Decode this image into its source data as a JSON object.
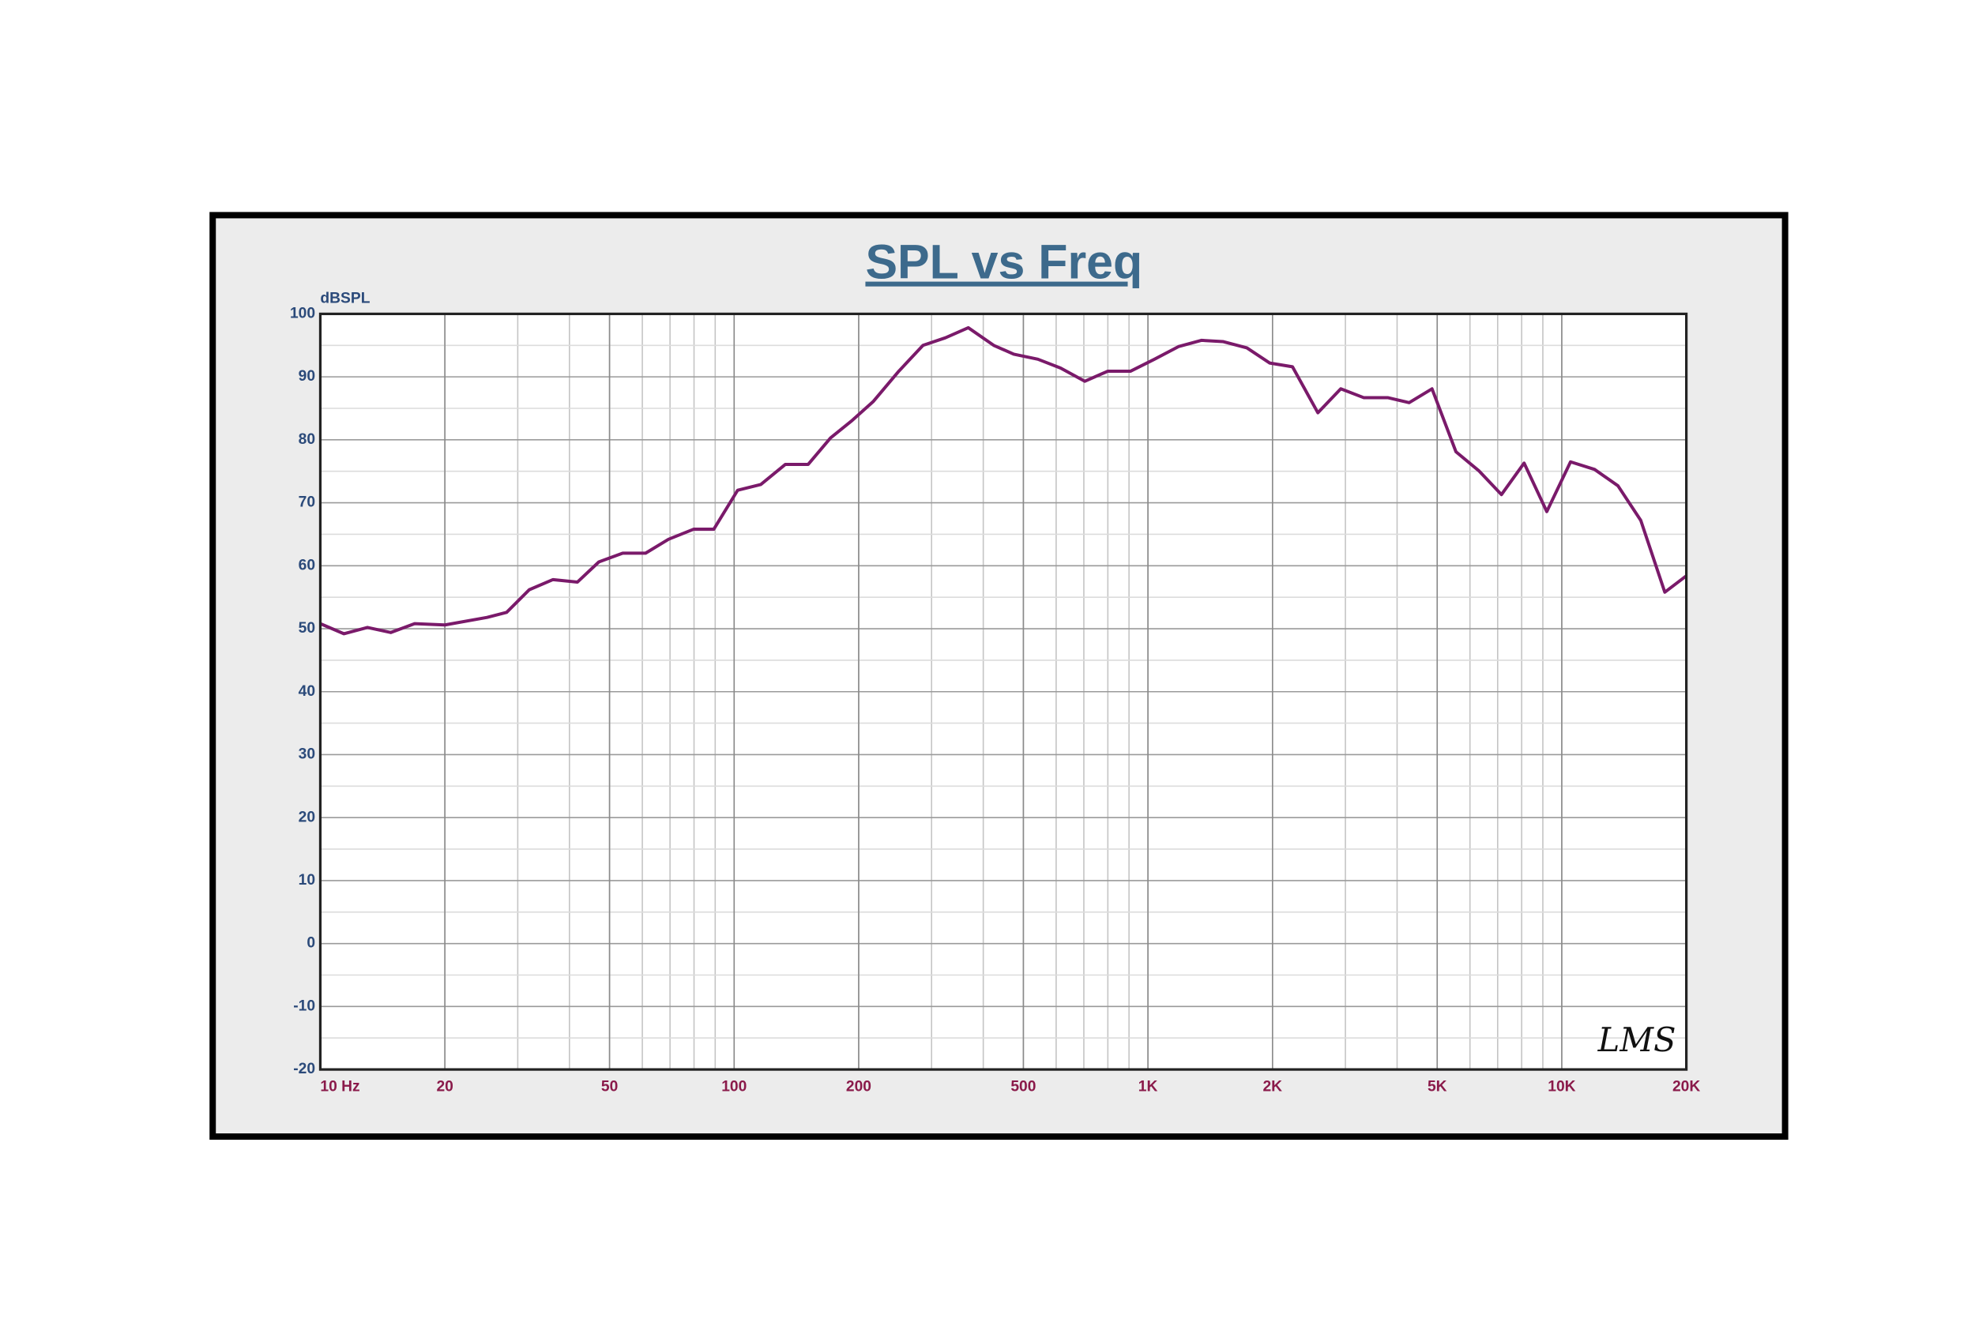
{
  "chart_data": {
    "type": "line",
    "title": "SPL vs Freq",
    "ylabel": "dBSPL",
    "annotation": "LMS",
    "xscale": "log",
    "grid": true,
    "minor_grid": true,
    "xlim": [
      10,
      20000
    ],
    "ylim": [
      -20,
      100
    ],
    "xticks": [
      {
        "value": 10,
        "label": "10 Hz"
      },
      20,
      50,
      100,
      200,
      500,
      {
        "value": 1000,
        "label": "1K"
      },
      {
        "value": 2000,
        "label": "2K"
      },
      {
        "value": 5000,
        "label": "5K"
      },
      {
        "value": 10000,
        "label": "10K"
      },
      {
        "value": 20000,
        "label": "20K"
      }
    ],
    "yticks": [
      -20,
      -10,
      0,
      10,
      20,
      30,
      40,
      50,
      60,
      70,
      80,
      90,
      100
    ],
    "series": [
      {
        "color": "#7a1a6a",
        "x": [
          10,
          11.4,
          13,
          14.8,
          16.9,
          20,
          25.3,
          28.2,
          32,
          36.5,
          41.8,
          47.1,
          53.8,
          61.1,
          69.4,
          79.8,
          89.3,
          102,
          116,
          133,
          151,
          171,
          193,
          217,
          250,
          286,
          324,
          368,
          424,
          474,
          542,
          615,
          704,
          800,
          908,
          1037,
          1185,
          1346,
          1517,
          1734,
          1968,
          2235,
          2574,
          2924,
          3321,
          3796,
          4277,
          4858,
          5550,
          6300,
          7150,
          8110,
          9200,
          10500,
          12000,
          13670,
          15520,
          17740,
          20000
        ],
        "values": [
          50.8,
          49.2,
          50.2,
          49.4,
          50.8,
          50.6,
          51.8,
          52.6,
          56.2,
          57.8,
          57.4,
          60.6,
          62,
          62,
          64.2,
          65.8,
          65.8,
          72,
          72.9,
          76.1,
          76.1,
          80.3,
          83.1,
          86.1,
          90.9,
          95,
          96.2,
          97.8,
          95,
          93.6,
          92.8,
          91.4,
          89.3,
          90.9,
          90.9,
          92.8,
          94.8,
          95.8,
          95.6,
          94.6,
          92.2,
          91.6,
          84.3,
          88.1,
          86.7,
          86.7,
          85.9,
          88.1,
          78.1,
          75.1,
          71.3,
          76.3,
          68.6,
          76.5,
          75.3,
          72.7,
          67.2,
          55.8,
          58.4
        ]
      }
    ]
  }
}
